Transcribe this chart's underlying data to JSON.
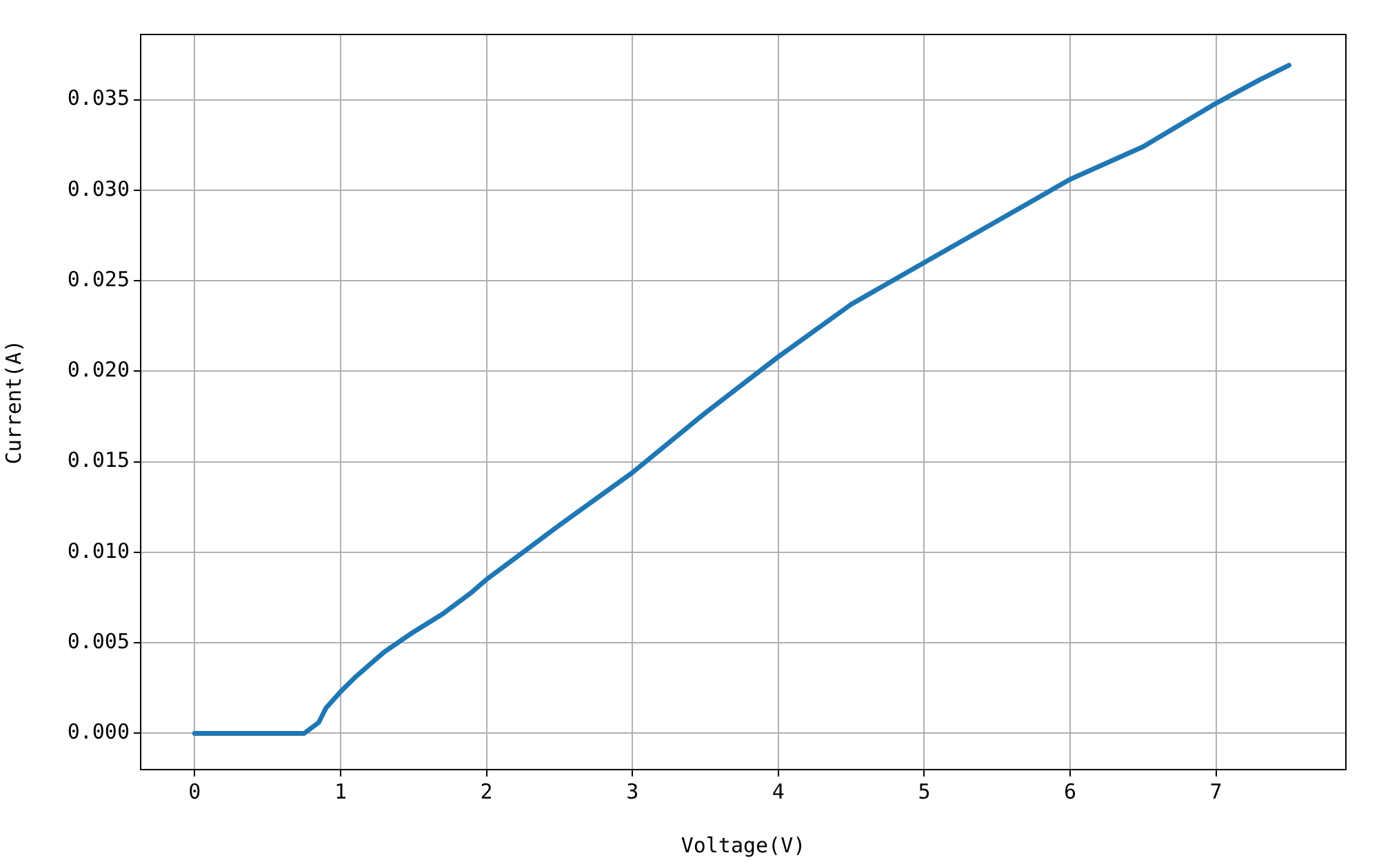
{
  "chart_data": {
    "type": "line",
    "xlabel": "Voltage(V)",
    "ylabel": "Current(A)",
    "x": [
      0,
      0.75,
      0.85,
      0.9,
      1.0,
      1.1,
      1.2,
      1.3,
      1.5,
      1.7,
      1.9,
      2.0,
      2.5,
      3.0,
      3.5,
      4.0,
      4.5,
      5.0,
      5.5,
      6.0,
      6.5,
      7.0,
      7.3,
      7.4,
      7.5
    ],
    "series": [
      {
        "color": "#1f77b4",
        "values": [
          0,
          0,
          0.0006,
          0.0014,
          0.0023,
          0.0031,
          0.0038,
          0.0045,
          0.0056,
          0.0066,
          0.0078,
          0.0085,
          0.0115,
          0.0144,
          0.0177,
          0.0208,
          0.0237,
          0.026,
          0.0283,
          0.0306,
          0.0324,
          0.0348,
          0.0361,
          0.0365,
          0.0369
        ]
      }
    ],
    "xlim": [
      -0.37,
      7.89
    ],
    "xticks": [
      0,
      1,
      2,
      3,
      4,
      5,
      6,
      7
    ],
    "ylim": [
      -0.002,
      0.0386
    ],
    "yticks": [
      {
        "value": 0,
        "label": "0.000"
      },
      {
        "value": 0.005,
        "label": "0.005"
      },
      {
        "value": 0.01,
        "label": "0.010"
      },
      {
        "value": 0.015,
        "label": "0.015"
      },
      {
        "value": 0.02,
        "label": "0.020"
      },
      {
        "value": 0.025,
        "label": "0.025"
      },
      {
        "value": 0.03,
        "label": "0.030"
      },
      {
        "value": 0.035,
        "label": "0.035"
      }
    ],
    "grid": true
  }
}
